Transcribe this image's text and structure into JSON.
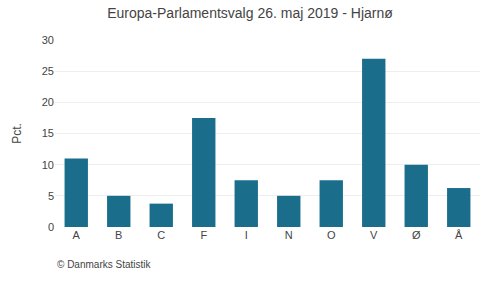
{
  "chart_data": {
    "type": "bar",
    "title": "Europa-Parlamentsvalg 26. maj 2019 - Hjarnø",
    "categories": [
      "A",
      "B",
      "C",
      "F",
      "I",
      "N",
      "O",
      "V",
      "Ø",
      "Å"
    ],
    "values": [
      11.0,
      5.0,
      3.75,
      17.5,
      7.5,
      5.0,
      7.5,
      27.0,
      10.0,
      6.25
    ],
    "color": "#1a6e8c",
    "ylabel": "Pct.",
    "ylim": [
      0,
      30
    ],
    "yticks": [
      0,
      5,
      10,
      15,
      20,
      25,
      30
    ],
    "grid": true,
    "annotations": [
      "© Danmarks Statistik"
    ]
  }
}
